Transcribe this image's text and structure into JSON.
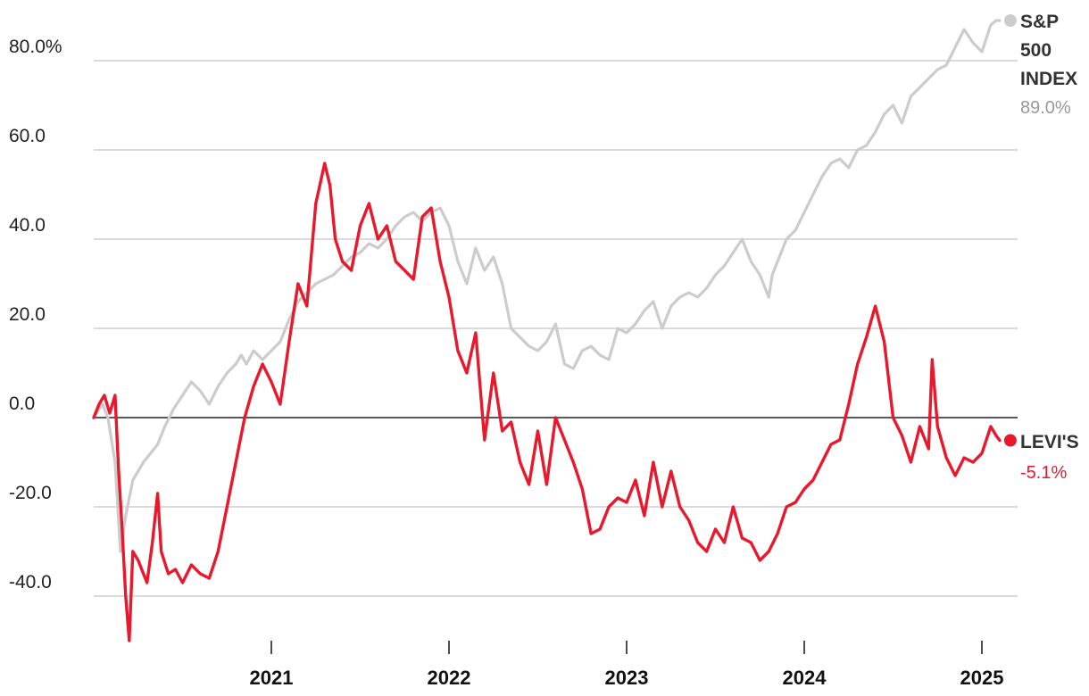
{
  "chart_data": {
    "type": "line",
    "y_ticks": [
      {
        "value": 80,
        "label": "80.0%"
      },
      {
        "value": 60,
        "label": "60.0"
      },
      {
        "value": 40,
        "label": "40.0"
      },
      {
        "value": 20,
        "label": "20.0"
      },
      {
        "value": 0,
        "label": "0.0"
      },
      {
        "value": -20,
        "label": "-20.0"
      },
      {
        "value": -40,
        "label": "-40.0"
      }
    ],
    "x_ticks": [
      {
        "value": 2021,
        "label": "2021"
      },
      {
        "value": 2022,
        "label": "2022"
      },
      {
        "value": 2023,
        "label": "2023"
      },
      {
        "value": 2024,
        "label": "2024"
      },
      {
        "value": 2025,
        "label": "2025"
      }
    ],
    "xlim": [
      2019.9,
      2025.2
    ],
    "ylim": [
      -52,
      92
    ],
    "grid": true,
    "series": [
      {
        "name": "S&P 500 INDEX",
        "label_lines": [
          "S&P",
          "500",
          "INDEX"
        ],
        "end_label": "89.0%",
        "color": "#cccccc",
        "end_value": 89.0,
        "x": [
          2020.0,
          2020.05,
          2020.08,
          2020.12,
          2020.15,
          2020.18,
          2020.2,
          2020.22,
          2020.25,
          2020.28,
          2020.32,
          2020.36,
          2020.4,
          2020.45,
          2020.5,
          2020.55,
          2020.6,
          2020.65,
          2020.7,
          2020.75,
          2020.8,
          2020.83,
          2020.86,
          2020.9,
          2020.95,
          2021.0,
          2021.05,
          2021.1,
          2021.15,
          2021.2,
          2021.25,
          2021.3,
          2021.35,
          2021.4,
          2021.45,
          2021.5,
          2021.55,
          2021.6,
          2021.65,
          2021.7,
          2021.75,
          2021.8,
          2021.85,
          2021.9,
          2021.95,
          2022.0,
          2022.05,
          2022.1,
          2022.15,
          2022.2,
          2022.25,
          2022.3,
          2022.35,
          2022.4,
          2022.45,
          2022.5,
          2022.55,
          2022.6,
          2022.65,
          2022.7,
          2022.75,
          2022.8,
          2022.85,
          2022.9,
          2022.95,
          2023.0,
          2023.05,
          2023.1,
          2023.15,
          2023.2,
          2023.25,
          2023.3,
          2023.35,
          2023.4,
          2023.45,
          2023.5,
          2023.55,
          2023.6,
          2023.65,
          2023.7,
          2023.75,
          2023.8,
          2023.82,
          2023.85,
          2023.9,
          2023.95,
          2024.0,
          2024.05,
          2024.1,
          2024.15,
          2024.2,
          2024.25,
          2024.3,
          2024.35,
          2024.4,
          2024.45,
          2024.5,
          2024.55,
          2024.6,
          2024.65,
          2024.7,
          2024.75,
          2024.8,
          2024.85,
          2024.9,
          2024.95,
          2025.0,
          2025.05,
          2025.08,
          2025.1
        ],
        "y": [
          0,
          3,
          0,
          -10,
          -30,
          -22,
          -18,
          -14,
          -12,
          -10,
          -8,
          -6,
          -2,
          2,
          5,
          8,
          6,
          3,
          7,
          10,
          12,
          14,
          12,
          15,
          13,
          15,
          17,
          22,
          26,
          28,
          30,
          31,
          32,
          34,
          36,
          37,
          39,
          38,
          40,
          43,
          45,
          46,
          44,
          46,
          47,
          43,
          35,
          30,
          38,
          33,
          36,
          30,
          20,
          18,
          16,
          15,
          17,
          21,
          12,
          11,
          15,
          16,
          14,
          13,
          20,
          19,
          21,
          24,
          26,
          20,
          25,
          27,
          28,
          27,
          29,
          32,
          34,
          37,
          40,
          35,
          32,
          27,
          32,
          35,
          40,
          42,
          46,
          50,
          54,
          57,
          58,
          56,
          60,
          61,
          64,
          68,
          70,
          66,
          72,
          74,
          76,
          78,
          79,
          83,
          87,
          84,
          82,
          88,
          89,
          89
        ]
      },
      {
        "name": "LEVI'S",
        "label_lines": [
          "LEVI'S"
        ],
        "end_label": "-5.1%",
        "color": "#e8192c",
        "end_value": -5.1,
        "x": [
          2020.0,
          2020.03,
          2020.06,
          2020.09,
          2020.12,
          2020.14,
          2020.16,
          2020.18,
          2020.2,
          2020.22,
          2020.25,
          2020.28,
          2020.3,
          2020.33,
          2020.36,
          2020.38,
          2020.42,
          2020.46,
          2020.5,
          2020.55,
          2020.6,
          2020.65,
          2020.7,
          2020.75,
          2020.8,
          2020.85,
          2020.9,
          2020.95,
          2021.0,
          2021.05,
          2021.1,
          2021.15,
          2021.2,
          2021.25,
          2021.3,
          2021.33,
          2021.36,
          2021.4,
          2021.45,
          2021.5,
          2021.55,
          2021.6,
          2021.65,
          2021.7,
          2021.75,
          2021.8,
          2021.85,
          2021.9,
          2021.95,
          2022.0,
          2022.05,
          2022.1,
          2022.15,
          2022.2,
          2022.25,
          2022.3,
          2022.35,
          2022.4,
          2022.45,
          2022.5,
          2022.55,
          2022.6,
          2022.65,
          2022.7,
          2022.75,
          2022.8,
          2022.85,
          2022.9,
          2022.95,
          2023.0,
          2023.05,
          2023.1,
          2023.15,
          2023.2,
          2023.25,
          2023.3,
          2023.35,
          2023.4,
          2023.45,
          2023.5,
          2023.55,
          2023.6,
          2023.65,
          2023.7,
          2023.75,
          2023.8,
          2023.85,
          2023.9,
          2023.95,
          2024.0,
          2024.05,
          2024.1,
          2024.15,
          2024.2,
          2024.25,
          2024.3,
          2024.35,
          2024.4,
          2024.45,
          2024.5,
          2024.55,
          2024.6,
          2024.65,
          2024.7,
          2024.72,
          2024.75,
          2024.8,
          2024.85,
          2024.9,
          2024.95,
          2025.0,
          2025.05,
          2025.08,
          2025.1
        ],
        "y": [
          0,
          3,
          5,
          1,
          5,
          -12,
          -25,
          -40,
          -50,
          -30,
          -32,
          -35,
          -37,
          -28,
          -17,
          -30,
          -35,
          -34,
          -37,
          -33,
          -35,
          -36,
          -30,
          -20,
          -10,
          0,
          7,
          12,
          8,
          3,
          17,
          30,
          25,
          48,
          57,
          52,
          40,
          35,
          33,
          43,
          48,
          40,
          43,
          35,
          33,
          31,
          45,
          47,
          35,
          27,
          15,
          10,
          19,
          -5,
          10,
          -3,
          -1,
          -10,
          -15,
          -3,
          -15,
          0,
          -5,
          -10,
          -16,
          -26,
          -25,
          -20,
          -18,
          -19,
          -14,
          -22,
          -10,
          -20,
          -12,
          -20,
          -23,
          -28,
          -30,
          -25,
          -28,
          -20,
          -27,
          -28,
          -32,
          -30,
          -26,
          -20,
          -19,
          -16,
          -14,
          -10,
          -6,
          -5,
          3,
          12,
          18,
          25,
          17,
          0,
          -4,
          -10,
          -2,
          -7,
          13,
          -2,
          -9,
          -13,
          -9,
          -10,
          -8,
          -2,
          -4,
          -5.1
        ]
      }
    ]
  }
}
